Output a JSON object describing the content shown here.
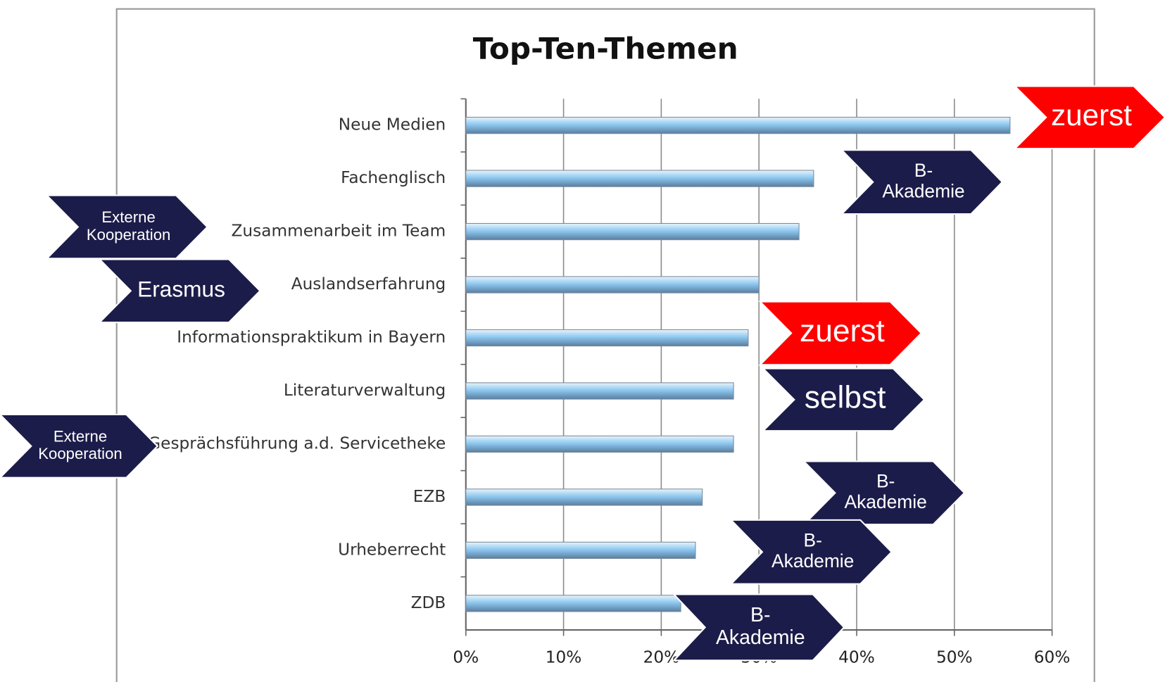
{
  "chart_data": {
    "type": "bar",
    "orientation": "horizontal",
    "title": "Top-Ten-Themen",
    "categories": [
      "Neue Medien",
      "Fachenglisch",
      "Zusammenarbeit im Team",
      "Auslandserfahrung",
      "Informationspraktikum in Bayern",
      "Literaturverwaltung",
      "Gesprächsführung a.d. Servicetheke",
      "EZB",
      "Urheberrecht",
      "ZDB"
    ],
    "values": [
      55.7,
      35.6,
      34.1,
      30,
      28.9,
      27.4,
      27.4,
      24.2,
      23.5,
      22
    ],
    "color": "#8ec8f0",
    "xlim": [
      0,
      60
    ],
    "xticks": [
      {
        "value": 0,
        "label": "0%"
      },
      {
        "value": 10,
        "label": "10%"
      },
      {
        "value": 20,
        "label": "20%"
      },
      {
        "value": 30,
        "label": "30%"
      },
      {
        "value": 40,
        "label": "40%"
      },
      {
        "value": 50,
        "label": "50%"
      },
      {
        "value": 60,
        "label": "60%"
      }
    ],
    "grid": true,
    "annotations": [
      {
        "lines": [
          "zuerst"
        ],
        "color": "#ff0000"
      },
      {
        "lines": [
          "B-",
          "Akademie"
        ],
        "color": "#1c1c4a"
      },
      {
        "lines": [
          "Externe",
          "Kooperation"
        ],
        "color": "#1c1c4a"
      },
      {
        "lines": [
          "Erasmus"
        ],
        "color": "#1c1c4a"
      },
      {
        "lines": [
          "zuerst"
        ],
        "color": "#ff0000"
      },
      {
        "lines": [
          "selbst"
        ],
        "color": "#1c1c4a"
      },
      {
        "lines": [
          "Externe",
          "Kooperation"
        ],
        "color": "#1c1c4a"
      },
      {
        "lines": [
          "B-",
          "Akademie"
        ],
        "color": "#1c1c4a"
      },
      {
        "lines": [
          "B-",
          "Akademie"
        ],
        "color": "#1c1c4a"
      },
      {
        "lines": [
          "B-",
          "Akademie"
        ],
        "color": "#1c1c4a"
      }
    ]
  }
}
